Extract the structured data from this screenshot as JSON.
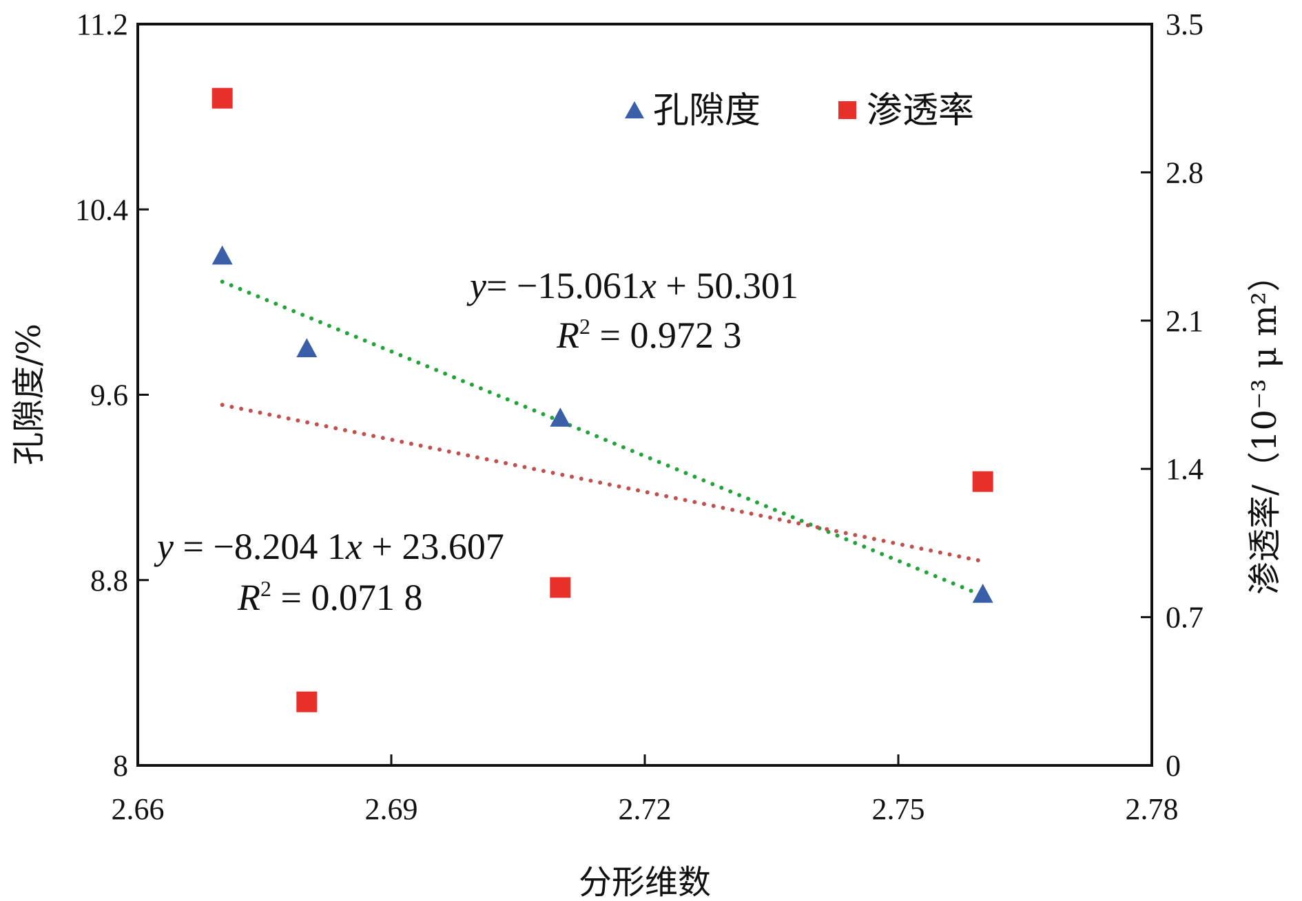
{
  "chart_data": {
    "type": "scatter",
    "xlabel": "分形维数",
    "ylabel_left": "孔隙度/%",
    "ylabel_right": "渗透率/（10⁻³ μ m²）",
    "xlim": [
      2.66,
      2.78
    ],
    "ylim_left": [
      8,
      11.2
    ],
    "ylim_right": [
      0,
      3.5
    ],
    "x_ticks": [
      "2.66",
      "2.69",
      "2.72",
      "2.75",
      "2.78"
    ],
    "y_left_ticks": [
      "8",
      "8.8",
      "9.6",
      "10.4",
      "11.2"
    ],
    "y_right_ticks": [
      "0",
      "0.7",
      "1.4",
      "2.1",
      "2.8",
      "3.5"
    ],
    "grid": false,
    "legend_position": "top-right",
    "series": [
      {
        "name": "孔隙度",
        "axis": "left",
        "marker": "triangle",
        "color": "#3a5fa8",
        "x": [
          2.67,
          2.68,
          2.71,
          2.76
        ],
        "y": [
          10.2,
          9.8,
          9.5,
          8.74
        ]
      },
      {
        "name": "渗透率",
        "axis": "right",
        "marker": "square",
        "color": "#e8302a",
        "x": [
          2.67,
          2.68,
          2.71,
          2.76
        ],
        "y": [
          3.15,
          0.3,
          0.84,
          1.34
        ]
      }
    ],
    "trendlines": [
      {
        "series": "孔隙度",
        "color": "#22a33a",
        "slope": -15.061,
        "intercept": 50.301,
        "x_range": [
          2.67,
          2.76
        ],
        "eq_y": "y",
        "eq_rhs": "= −15.061",
        "eq_x": "x",
        "eq_tail": " + 50.301",
        "r_label": "R",
        "r_sup": "2",
        "r_value": " = 0.972 3"
      },
      {
        "series": "渗透率",
        "color": "#c0504d",
        "slope": -8.2041,
        "intercept": 23.607,
        "x_range": [
          2.67,
          2.76
        ],
        "eq_y": "y",
        "eq_rhs": " = −8.204 1",
        "eq_x": "x",
        "eq_tail": " + 23.607",
        "r_label": "R",
        "r_sup": "2",
        "r_value": " = 0.071 8"
      }
    ]
  }
}
